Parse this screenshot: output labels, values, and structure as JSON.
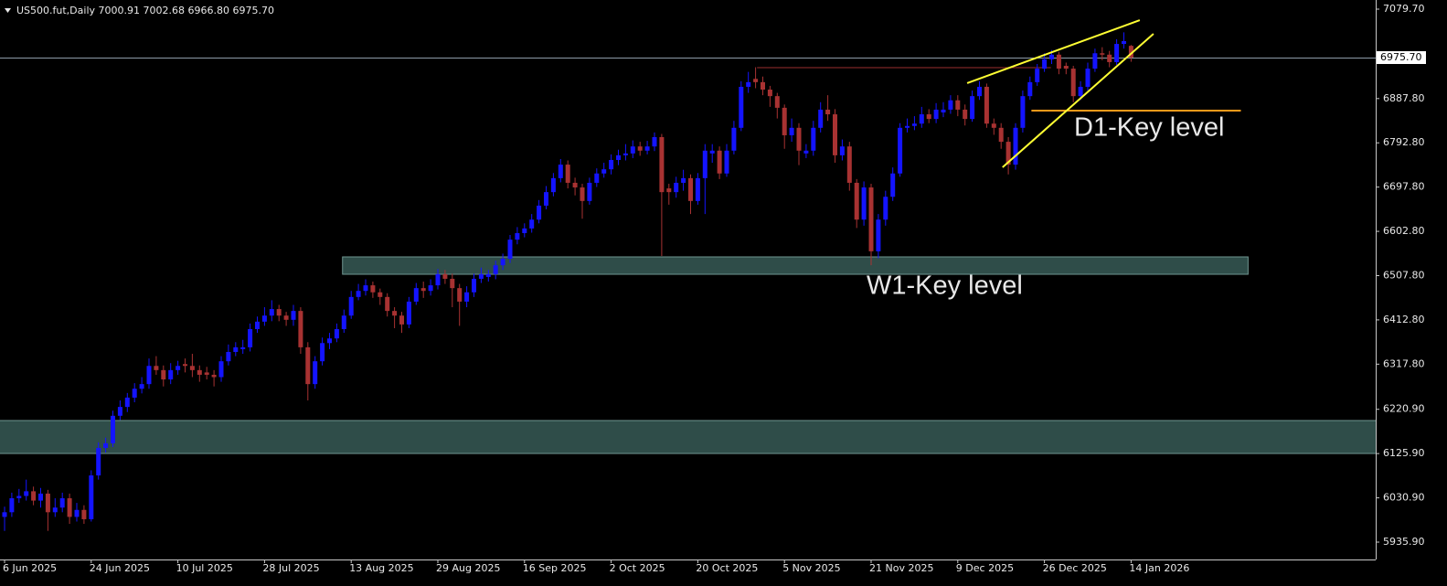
{
  "chart_data": {
    "type": "candlestick",
    "title": "US500.fut,Daily  7000.91 7002.68 6966.80 6975.70",
    "up_color": "#1414ff",
    "down_color": "#a83232",
    "categories": [
      "6 Jun 2025",
      null,
      null,
      null,
      null,
      null,
      null,
      null,
      null,
      null,
      null,
      null,
      "24 Jun 2025",
      null,
      null,
      null,
      null,
      null,
      null,
      null,
      null,
      null,
      null,
      null,
      "10 Jul 2025",
      null,
      null,
      null,
      null,
      null,
      null,
      null,
      null,
      null,
      null,
      null,
      "28 Jul 2025",
      null,
      null,
      null,
      null,
      null,
      null,
      null,
      null,
      null,
      null,
      null,
      "13 Aug 2025",
      null,
      null,
      null,
      null,
      null,
      null,
      null,
      null,
      null,
      null,
      null,
      "29 Aug 2025",
      null,
      null,
      null,
      null,
      null,
      null,
      null,
      null,
      null,
      null,
      null,
      "16 Sep 2025",
      null,
      null,
      null,
      null,
      null,
      null,
      null,
      null,
      null,
      null,
      null,
      "2 Oct 2025",
      null,
      null,
      null,
      null,
      null,
      null,
      null,
      null,
      null,
      null,
      null,
      "20 Oct 2025",
      null,
      null,
      null,
      null,
      null,
      null,
      null,
      null,
      null,
      null,
      null,
      "5 Nov 2025",
      null,
      null,
      null,
      null,
      null,
      null,
      null,
      null,
      null,
      null,
      null,
      "21 Nov 2025",
      null,
      null,
      null,
      null,
      null,
      null,
      null,
      null,
      null,
      null,
      null,
      "9 Dec 2025",
      null,
      null,
      null,
      null,
      null,
      null,
      null,
      null,
      null,
      null,
      null,
      "26 Dec 2025",
      null,
      null,
      null,
      null,
      null,
      null,
      null,
      null,
      null,
      null,
      null,
      "14 Jan 2026"
    ],
    "open": [
      5990,
      6000,
      6030,
      6035,
      6045,
      6025,
      6040,
      6000,
      6010,
      6030,
      5990,
      6005,
      5985,
      6079,
      6138,
      6148,
      6207,
      6226,
      6246,
      6265,
      6275,
      6314,
      6305,
      6285,
      6305,
      6318,
      6314,
      6305,
      6300,
      6295,
      6290,
      6324,
      6344,
      6350,
      6354,
      6393,
      6409,
      6422,
      6436,
      6422,
      6413,
      6432,
      6354,
      6275,
      6324,
      6363,
      6373,
      6393,
      6422,
      6462,
      6475,
      6487,
      6472,
      6462,
      6432,
      6422,
      6403,
      6452,
      6481,
      6475,
      6487,
      6511,
      6501,
      6481,
      6452,
      6472,
      6501,
      6505,
      6511,
      6530,
      6544,
      6585,
      6599,
      6609,
      6628,
      6658,
      6687,
      6717,
      6746,
      6707,
      6697,
      6668,
      6707,
      6727,
      6736,
      6756,
      6766,
      6770,
      6785,
      6776,
      6785,
      6805,
      6695,
      6687,
      6707,
      6717,
      6668,
      6717,
      6770,
      6776,
      6727,
      6776,
      6825,
      6913,
      6930,
      6923,
      6907,
      6893,
      6868,
      6809,
      6825,
      6770,
      6776,
      6825,
      6864,
      6854,
      6766,
      6785,
      6707,
      6628,
      6697,
      6560,
      6628,
      6677,
      6727,
      6825,
      6829,
      6834,
      6854,
      6844,
      6858,
      6864,
      6884,
      6864,
      6844,
      6893,
      6913,
      6834,
      6825,
      6795,
      6746,
      6825,
      6893,
      6923,
      6952,
      6972,
      6982,
      6958,
      6952,
      6893,
      6913,
      6952,
      6985,
      6982,
      6966,
      7005,
      7000.91
    ],
    "high": [
      6012,
      6042,
      6050,
      6070,
      6055,
      6052,
      6048,
      6030,
      6042,
      6040,
      6020,
      6015,
      6090,
      6150,
      6160,
      6218,
      6240,
      6256,
      6277,
      6290,
      6330,
      6335,
      6315,
      6320,
      6325,
      6330,
      6340,
      6315,
      6312,
      6305,
      6335,
      6360,
      6365,
      6370,
      6405,
      6420,
      6440,
      6455,
      6445,
      6430,
      6445,
      6440,
      6365,
      6335,
      6375,
      6385,
      6405,
      6435,
      6475,
      6490,
      6500,
      6495,
      6480,
      6470,
      6440,
      6430,
      6462,
      6492,
      6495,
      6500,
      6522,
      6520,
      6512,
      6490,
      6485,
      6512,
      6525,
      6520,
      6540,
      6555,
      6595,
      6612,
      6620,
      6640,
      6670,
      6700,
      6728,
      6758,
      6755,
      6718,
      6705,
      6718,
      6738,
      6750,
      6768,
      6778,
      6790,
      6798,
      6795,
      6797,
      6815,
      6812,
      6705,
      6720,
      6735,
      6725,
      6728,
      6790,
      6790,
      6785,
      6790,
      6840,
      6925,
      6945,
      6955,
      6935,
      6915,
      6900,
      6875,
      6845,
      6835,
      6790,
      6840,
      6880,
      6895,
      6865,
      6800,
      6795,
      6715,
      6710,
      6705,
      6640,
      6690,
      6740,
      6835,
      6845,
      6850,
      6870,
      6865,
      6878,
      6880,
      6895,
      6895,
      6875,
      6905,
      6925,
      6920,
      6845,
      6835,
      6805,
      6835,
      6905,
      6935,
      6962,
      6985,
      6992,
      6988,
      6965,
      6958,
      6925,
      6965,
      6995,
      6998,
      6990,
      7015,
      7030,
      7002.68
    ],
    "low": [
      5960,
      5990,
      6020,
      6025,
      6015,
      6010,
      5960,
      5990,
      6000,
      5975,
      5980,
      5975,
      5980,
      6070,
      6128,
      6140,
      6198,
      6215,
      6236,
      6255,
      6265,
      6295,
      6270,
      6275,
      6295,
      6300,
      6290,
      6280,
      6285,
      6270,
      6280,
      6315,
      6335,
      6340,
      6345,
      6385,
      6400,
      6410,
      6410,
      6400,
      6400,
      6340,
      6240,
      6265,
      6315,
      6350,
      6365,
      6385,
      6415,
      6455,
      6465,
      6460,
      6445,
      6420,
      6395,
      6385,
      6395,
      6445,
      6460,
      6465,
      6478,
      6490,
      6440,
      6400,
      6440,
      6462,
      6492,
      6495,
      6500,
      6520,
      6535,
      6575,
      6590,
      6600,
      6620,
      6650,
      6678,
      6708,
      6695,
      6680,
      6630,
      6660,
      6698,
      6718,
      6725,
      6745,
      6755,
      6760,
      6765,
      6768,
      6775,
      6550,
      6660,
      6675,
      6690,
      6640,
      6660,
      6640,
      6750,
      6715,
      6720,
      6768,
      6818,
      6900,
      6910,
      6895,
      6870,
      6845,
      6780,
      6795,
      6745,
      6760,
      6765,
      6815,
      6840,
      6750,
      6755,
      6690,
      6610,
      6615,
      6530,
      6545,
      6615,
      6668,
      6720,
      6815,
      6820,
      6825,
      6835,
      6835,
      6848,
      6855,
      6850,
      6830,
      6838,
      6885,
      6825,
      6810,
      6780,
      6725,
      6735,
      6815,
      6885,
      6915,
      6945,
      6962,
      6940,
      6940,
      6880,
      6885,
      6905,
      6945,
      6970,
      6955,
      6960,
      6995,
      6966.8
    ],
    "close": [
      6000,
      6030,
      6035,
      6045,
      6025,
      6040,
      6000,
      6010,
      6030,
      5990,
      6005,
      5985,
      6079,
      6138,
      6148,
      6207,
      6226,
      6246,
      6265,
      6275,
      6314,
      6305,
      6285,
      6305,
      6314,
      6314,
      6305,
      6295,
      6295,
      6290,
      6324,
      6344,
      6354,
      6354,
      6393,
      6409,
      6422,
      6436,
      6422,
      6413,
      6432,
      6354,
      6275,
      6324,
      6363,
      6373,
      6393,
      6422,
      6462,
      6475,
      6487,
      6472,
      6462,
      6432,
      6422,
      6403,
      6452,
      6481,
      6475,
      6487,
      6511,
      6501,
      6481,
      6452,
      6472,
      6501,
      6511,
      6511,
      6530,
      6544,
      6585,
      6599,
      6609,
      6628,
      6658,
      6687,
      6717,
      6746,
      6707,
      6697,
      6668,
      6707,
      6727,
      6736,
      6756,
      6766,
      6770,
      6785,
      6776,
      6785,
      6805,
      6687,
      6687,
      6707,
      6717,
      6668,
      6717,
      6776,
      6776,
      6727,
      6776,
      6825,
      6913,
      6923,
      6923,
      6907,
      6893,
      6868,
      6809,
      6825,
      6776,
      6776,
      6825,
      6864,
      6854,
      6766,
      6785,
      6707,
      6628,
      6697,
      6560,
      6628,
      6677,
      6727,
      6825,
      6829,
      6834,
      6854,
      6844,
      6864,
      6864,
      6884,
      6864,
      6844,
      6893,
      6913,
      6834,
      6825,
      6795,
      6746,
      6825,
      6893,
      6923,
      6952,
      6972,
      6982,
      6952,
      6952,
      6893,
      6913,
      6952,
      6985,
      6982,
      6966,
      7005,
      7011,
      6975.7
    ],
    "ylim": [
      5898.6,
      7099.3
    ],
    "yticks": [
      {
        "value": 7079.7,
        "label": "7079.70"
      },
      {
        "value": 6887.8,
        "label": "6887.80"
      },
      {
        "value": 6792.8,
        "label": "6792.80"
      },
      {
        "value": 6697.8,
        "label": "6697.80"
      },
      {
        "value": 6602.8,
        "label": "6602.80"
      },
      {
        "value": 6507.8,
        "label": "6507.80"
      },
      {
        "value": 6412.8,
        "label": "6412.80"
      },
      {
        "value": 6317.8,
        "label": "6317.80"
      },
      {
        "value": 6220.9,
        "label": "6220.90"
      },
      {
        "value": 6125.9,
        "label": "6125.90"
      },
      {
        "value": 6030.9,
        "label": "6030.90"
      },
      {
        "value": 5935.9,
        "label": "5935.90"
      }
    ],
    "current_price": {
      "value": 6975.7,
      "label": "6975.70"
    },
    "zones": [
      {
        "from": 46.8,
        "to": 172.2,
        "low": 6510.7,
        "high": 6548,
        "color": "#2f4d49"
      },
      {
        "from": -1,
        "to": 191,
        "low": 6126.1,
        "high": 6196.8,
        "color": "#2f4d49"
      }
    ],
    "levels": [
      {
        "from": 104.2,
        "to": 144.9,
        "value": 6954.1,
        "color": "#9a2e2e"
      },
      {
        "from": 142.2,
        "to": 171.2,
        "value": 6861.9,
        "color": "#ff9a1a"
      }
    ],
    "trendlines": [
      {
        "x": [
          133.3,
          157.2
        ],
        "y": [
          6920.8,
          7056.1
        ],
        "color": "#ffff33"
      },
      {
        "x": [
          138.2,
          159.1
        ],
        "y": [
          6740.3,
          7026.7
        ],
        "color": "#ffff33"
      }
    ],
    "annotations": [
      {
        "text": "D1-Key level",
        "color": "#ff9a1a"
      },
      {
        "text": "W1-Key level",
        "color": "#3dad7c"
      }
    ]
  }
}
